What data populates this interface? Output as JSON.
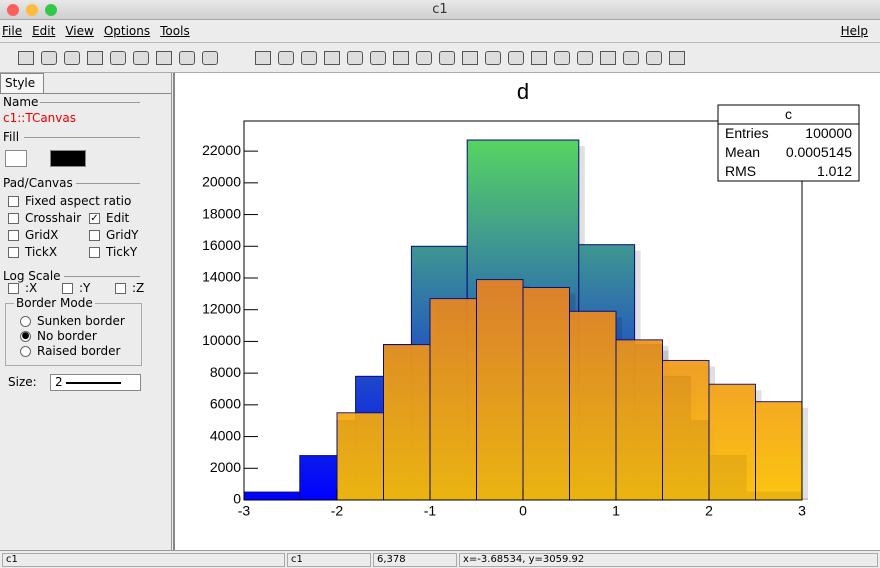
{
  "window": {
    "title": "c1"
  },
  "menu": {
    "items": [
      "File",
      "Edit",
      "View",
      "Options",
      "Tools"
    ],
    "help": "Help"
  },
  "editor": {
    "tab": "Style",
    "name_label": "Name",
    "name_value": "c1::TCanvas",
    "fill_label": "Fill",
    "pad_label": "Pad/Canvas",
    "options": [
      {
        "label": "Fixed aspect ratio",
        "checked": false
      },
      {
        "label": "Crosshair",
        "checked": false
      },
      {
        "label": "Edit",
        "checked": true
      },
      {
        "label": "GridX",
        "checked": false
      },
      {
        "label": "GridY",
        "checked": false
      },
      {
        "label": "TickX",
        "checked": false
      },
      {
        "label": "TickY",
        "checked": false
      }
    ],
    "log_label": "Log Scale",
    "log": [
      {
        "label": ":X",
        "checked": false
      },
      {
        "label": ":Y",
        "checked": false
      },
      {
        "label": ":Z",
        "checked": false
      }
    ],
    "border_label": "Border Mode",
    "border": [
      {
        "label": "Sunken border",
        "checked": false
      },
      {
        "label": "No border",
        "checked": true
      },
      {
        "label": "Raised border",
        "checked": false
      }
    ],
    "size_label": "Size:",
    "size_value": "2"
  },
  "chart_data": {
    "type": "histogram",
    "title": "d",
    "series": [
      {
        "bins": [
          -3,
          -2.4,
          -2,
          -1.8,
          -1.5,
          -1.2,
          -0.6,
          0.6,
          1.2,
          1.5,
          1.8,
          2,
          2.4,
          3
        ],
        "values": [
          500,
          2800,
          5000,
          7800,
          9800,
          16000,
          22700,
          16100,
          9800,
          7800,
          5000,
          2800,
          500
        ],
        "gradient": [
          "#5ce05a",
          "#0000ff"
        ],
        "color": "#0a0a7a"
      },
      {
        "bins": [
          -2,
          -1.5,
          -1,
          -0.5,
          0,
          0.5,
          1,
          1.5,
          2,
          2.5,
          3
        ],
        "values": [
          5500,
          9800,
          12700,
          13900,
          13400,
          11900,
          10100,
          8800,
          7300,
          6200
        ],
        "gradient": [
          "#d9503f",
          "#ffc400"
        ],
        "color": "#0a0a7a"
      }
    ],
    "xlim": [
      -3,
      3
    ],
    "ylim": [
      0,
      23900
    ],
    "xticks": [
      -3,
      -2,
      -1,
      0,
      1,
      2,
      3
    ],
    "yticks": [
      0,
      2000,
      4000,
      6000,
      8000,
      10000,
      12000,
      14000,
      16000,
      18000,
      20000,
      22000
    ],
    "stats": {
      "title": "c",
      "rows": [
        [
          "Entries",
          100000
        ],
        [
          "Mean",
          0.0005145
        ],
        [
          "RMS",
          1.012
        ]
      ]
    }
  },
  "status_bar": [
    "c1",
    "c1",
    "6,378",
    "x=-3.68534, y=3059.92"
  ]
}
